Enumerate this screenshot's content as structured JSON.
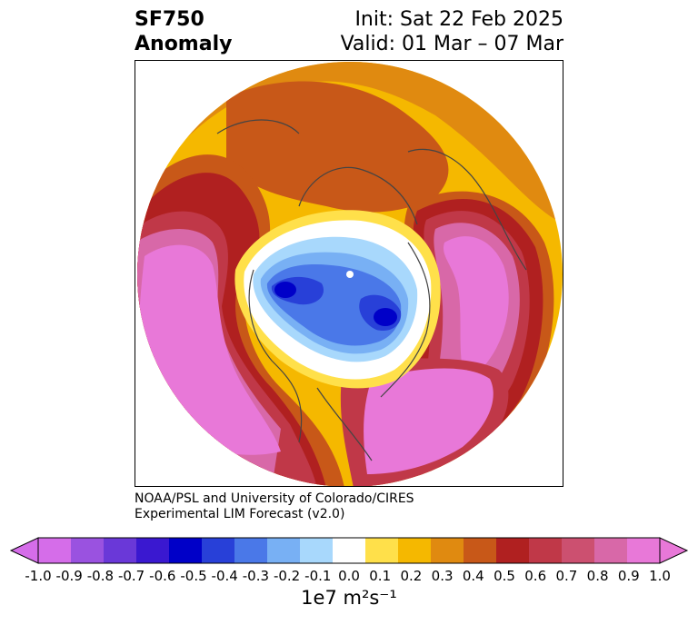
{
  "header": {
    "variable": "SF750",
    "kind": "Anomaly",
    "init": "Init: Sat 22 Feb 2025",
    "valid": "Valid: 01 Mar – 07 Mar"
  },
  "credits": {
    "line1": "NOAA/PSL and University of Colorado/CIRES",
    "line2": "Experimental LIM Forecast (v2.0)"
  },
  "colorbar": {
    "units": "1e7 m²s⁻¹",
    "ticks": [
      "-1.0",
      "-0.9",
      "-0.8",
      "-0.7",
      "-0.6",
      "-0.5",
      "-0.4",
      "-0.3",
      "-0.2",
      "-0.1",
      "0.0",
      "0.1",
      "0.2",
      "0.3",
      "0.4",
      "0.5",
      "0.6",
      "0.7",
      "0.8",
      "0.9",
      "1.0"
    ],
    "colors": [
      "#d56de9",
      "#9a52e0",
      "#6a38d8",
      "#3a18d0",
      "#0000c8",
      "#2840d8",
      "#4a78e8",
      "#78b0f4",
      "#a8d8fc",
      "#ffffff",
      "#ffe04a",
      "#f5b800",
      "#e08a10",
      "#c85818",
      "#b02020",
      "#c03848",
      "#cc5070",
      "#d868a8",
      "#e878d8"
    ],
    "under_color": "#d56de9",
    "over_color": "#e878d8"
  }
}
